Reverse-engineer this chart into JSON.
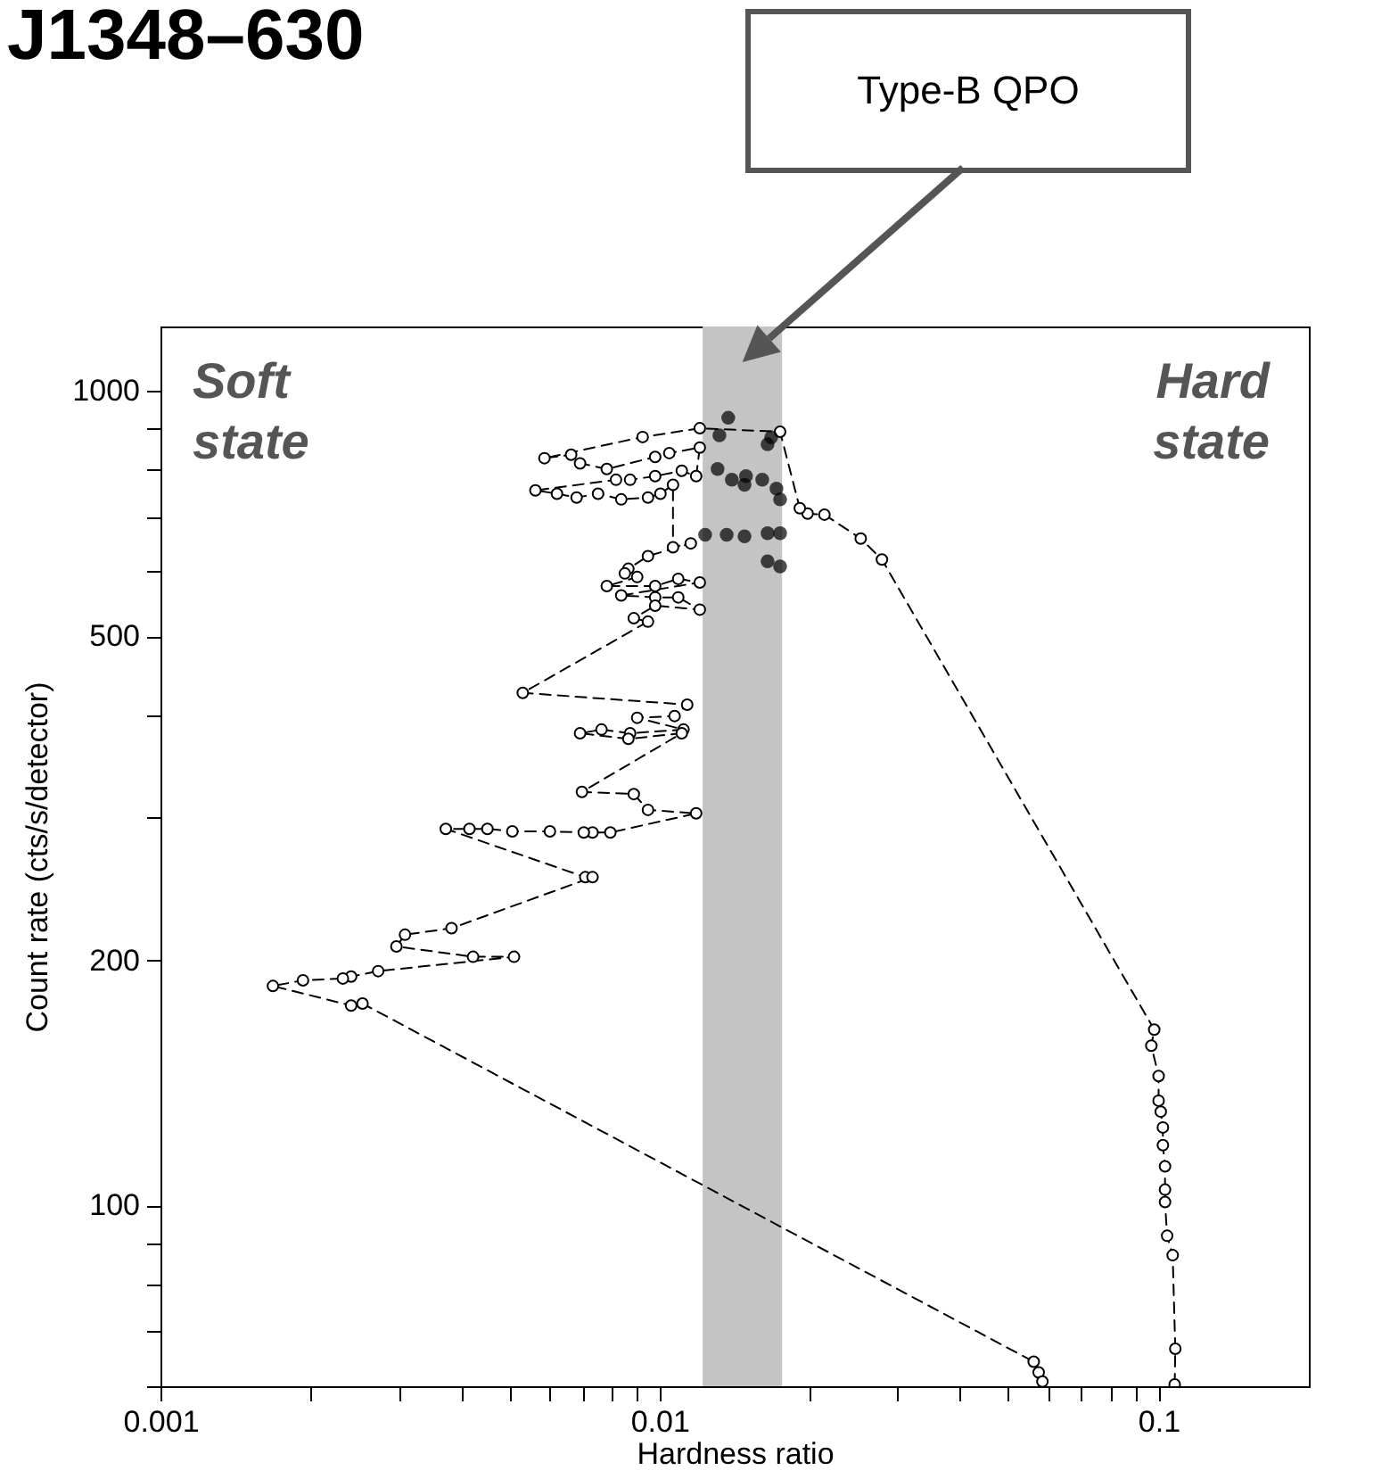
{
  "chart_data": {
    "type": "line",
    "title": "J1348–630",
    "xlabel": "Hardness ratio",
    "ylabel": "Count rate (cts/s/detector)",
    "log": "xy",
    "xlim": [
      0.001,
      0.2
    ],
    "ylim": [
      60,
      1200
    ],
    "xticks": [
      0.001,
      {
        "value": 0.002,
        "label": null
      },
      {
        "value": 0.003,
        "label": null
      },
      {
        "value": 0.004,
        "label": null
      },
      {
        "value": 0.005,
        "label": null
      },
      {
        "value": 0.006,
        "label": null
      },
      {
        "value": 0.007,
        "label": null
      },
      {
        "value": 0.008,
        "label": null
      },
      {
        "value": 0.009,
        "label": null
      },
      0.01,
      {
        "value": 0.02,
        "label": null
      },
      {
        "value": 0.03,
        "label": null
      },
      {
        "value": 0.04,
        "label": null
      },
      {
        "value": 0.05,
        "label": null
      },
      {
        "value": 0.06,
        "label": null
      },
      {
        "value": 0.07,
        "label": null
      },
      {
        "value": 0.08,
        "label": null
      },
      {
        "value": 0.09,
        "label": null
      },
      0.1
    ],
    "yticks": [
      {
        "value": 60,
        "label": null
      },
      {
        "value": 70,
        "label": null
      },
      {
        "value": 80,
        "label": null
      },
      {
        "value": 90,
        "label": null
      },
      100,
      200,
      {
        "value": 300,
        "label": null
      },
      {
        "value": 400,
        "label": null
      },
      500,
      {
        "value": 600,
        "label": null
      },
      {
        "value": 700,
        "label": null
      },
      {
        "value": 800,
        "label": null
      },
      {
        "value": 900,
        "label": null
      },
      1000
    ],
    "marker": "circle",
    "line_style": "dashed",
    "bands": [
      {
        "axis": "x",
        "from": 0.0122,
        "to": 0.0176,
        "color": "#c4c4c4"
      }
    ],
    "annotations": [
      "Soft state",
      "Hard state",
      "Type-B QPO"
    ],
    "series": [
      {
        "color": "#000000",
        "x": [
          0.1077,
          0.108,
          0.1067,
          0.104,
          0.103,
          0.103,
          0.103,
          0.102,
          0.102,
          0.101,
          0.1,
          0.1,
          0.0967,
          0.098,
          0.0279,
          0.0253,
          0.0214,
          0.0198,
          0.0191,
          0.01744,
          0.01204,
          0.00925,
          0.00588,
          0.00665,
          0.00693,
          0.00784,
          0.0098,
          0.01046,
          0.01204,
          0.01184,
          0.01108,
          0.0098,
          0.00873,
          0.00818,
          0.00564,
          0.00623,
          0.00682,
          0.00753,
          0.00838,
          0.00948,
          0.01004,
          0.01064,
          0.01064,
          0.01155,
          0.00948,
          0.00866,
          0.00852,
          0.00902,
          0.00784,
          0.0098,
          0.0109,
          0.01204,
          0.00838,
          0.0098,
          0.0109,
          0.01204,
          0.0098,
          0.00888,
          0.00948,
          0.00532,
          0.01136,
          0.01072,
          0.00902,
          0.01117,
          0.00873,
          0.00765,
          0.00693,
          0.00866,
          0.01108,
          0.00699,
          0.00888,
          0.00948,
          0.01184,
          0.00797,
          0.00734,
          0.00705,
          0.00603,
          0.00507,
          0.00452,
          0.00416,
          0.00373,
          0.0071,
          0.00734,
          0.00383,
          0.00309,
          0.00297,
          0.00423,
          0.00511,
          0.00273,
          0.00241,
          0.00232,
          0.00193,
          0.00168,
          0.00241,
          0.00254,
          0.0562,
          0.0575,
          0.0585
        ],
        "values": [
          60.3,
          66.7,
          86.9,
          91.8,
          101,
          104.6,
          111.7,
          118.6,
          124.7,
          130.4,
          134.5,
          144.2,
          157.1,
          164.4,
          621,
          659,
          705,
          707,
          718,
          891,
          900,
          878,
          827,
          835,
          815,
          802,
          830,
          839,
          852,
          786,
          798,
          786,
          778,
          778,
          755,
          748,
          740,
          748,
          736,
          740,
          748,
          767,
          643,
          650,
          627,
          605,
          597,
          591,
          576,
          576,
          588,
          582,
          561,
          558,
          558,
          539,
          545,
          526,
          521,
          426,
          412,
          399,
          397,
          384,
          380,
          384,
          380,
          374,
          380,
          322,
          320,
          306,
          303,
          287,
          287,
          287,
          288,
          288,
          290,
          290,
          290,
          253,
          253,
          219,
          215,
          208,
          202,
          202,
          194,
          191,
          190,
          189,
          186,
          176,
          177,
          64.3,
          62.4,
          60.8
        ]
      },
      {
        "type": "scatter",
        "color": "#000000",
        "x": [
          0.01373,
          0.01318,
          0.01674,
          0.01646,
          0.01307,
          0.01396,
          0.0149,
          0.01606,
          0.01715,
          0.01744,
          0.0148,
          0.01234,
          0.01363,
          0.0148,
          0.01646,
          0.01744,
          0.01646,
          0.01744
        ],
        "values": [
          927,
          882,
          877,
          860,
          802,
          778,
          786,
          778,
          759,
          736,
          767,
          666,
          666,
          663,
          669,
          669,
          618,
          609
        ]
      }
    ]
  }
}
